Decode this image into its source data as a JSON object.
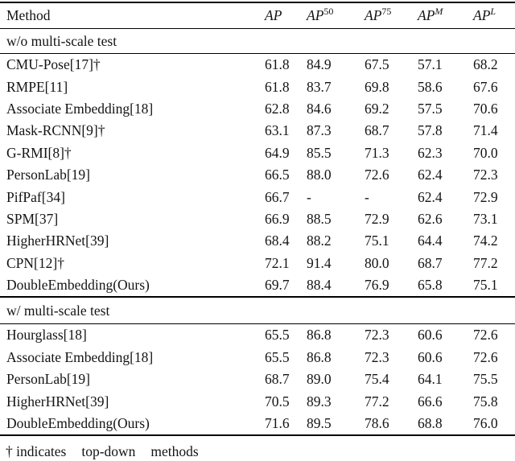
{
  "page": {
    "background_color": "#ffffff",
    "text_color": "#141414",
    "rule_color": "#000000"
  },
  "table": {
    "columns": [
      {
        "label": "Method",
        "sup": ""
      },
      {
        "label": "AP",
        "sup": ""
      },
      {
        "label": "AP",
        "sup": "50"
      },
      {
        "label": "AP",
        "sup": "75"
      },
      {
        "label": "AP",
        "sup": "M"
      },
      {
        "label": "AP",
        "sup": "L"
      }
    ],
    "sections": [
      {
        "header": "w/o multi-scale test",
        "rows": [
          {
            "method": "CMU-Pose[17]†",
            "values": [
              "61.8",
              "84.9",
              "67.5",
              "57.1",
              "68.2"
            ]
          },
          {
            "method": "RMPE[11]",
            "values": [
              "61.8",
              "83.7",
              "69.8",
              "58.6",
              "67.6"
            ]
          },
          {
            "method": "Associate Embedding[18]",
            "values": [
              "62.8",
              "84.6",
              "69.2",
              "57.5",
              "70.6"
            ]
          },
          {
            "method": "Mask-RCNN[9]†",
            "values": [
              "63.1",
              "87.3",
              "68.7",
              "57.8",
              "71.4"
            ]
          },
          {
            "method": "G-RMI[8]†",
            "values": [
              "64.9",
              "85.5",
              "71.3",
              "62.3",
              "70.0"
            ]
          },
          {
            "method": "PersonLab[19]",
            "values": [
              "66.5",
              "88.0",
              "72.6",
              "62.4",
              "72.3"
            ]
          },
          {
            "method": "PifPaf[34]",
            "values": [
              "66.7",
              "-",
              "-",
              "62.4",
              "72.9"
            ]
          },
          {
            "method": "SPM[37]",
            "values": [
              "66.9",
              "88.5",
              "72.9",
              "62.6",
              "73.1"
            ]
          },
          {
            "method": "HigherHRNet[39]",
            "values": [
              "68.4",
              "88.2",
              "75.1",
              "64.4",
              "74.2"
            ]
          },
          {
            "method": "CPN[12]†",
            "values": [
              "72.1",
              "91.4",
              "80.0",
              "68.7",
              "77.2"
            ]
          },
          {
            "method": "DoubleEmbedding(Ours)",
            "values": [
              "69.7",
              "88.4",
              "76.9",
              "65.8",
              "75.1"
            ]
          }
        ]
      },
      {
        "header": "w/ multi-scale test",
        "rows": [
          {
            "method": "Hourglass[18]",
            "values": [
              "65.5",
              "86.8",
              "72.3",
              "60.6",
              "72.6"
            ]
          },
          {
            "method": "Associate Embedding[18]",
            "values": [
              "65.5",
              "86.8",
              "72.3",
              "60.6",
              "72.6"
            ]
          },
          {
            "method": "PersonLab[19]",
            "values": [
              "68.7",
              "89.0",
              "75.4",
              "64.1",
              "75.5"
            ]
          },
          {
            "method": "HigherHRNet[39]",
            "values": [
              "70.5",
              "89.3",
              "77.2",
              "66.6",
              "75.8"
            ]
          },
          {
            "method": "DoubleEmbedding(Ours)",
            "values": [
              "71.6",
              "89.5",
              "78.6",
              "68.8",
              "76.0"
            ]
          }
        ]
      }
    ],
    "footnote": {
      "parts": [
        "† indicates",
        "top-down",
        "methods"
      ]
    }
  }
}
